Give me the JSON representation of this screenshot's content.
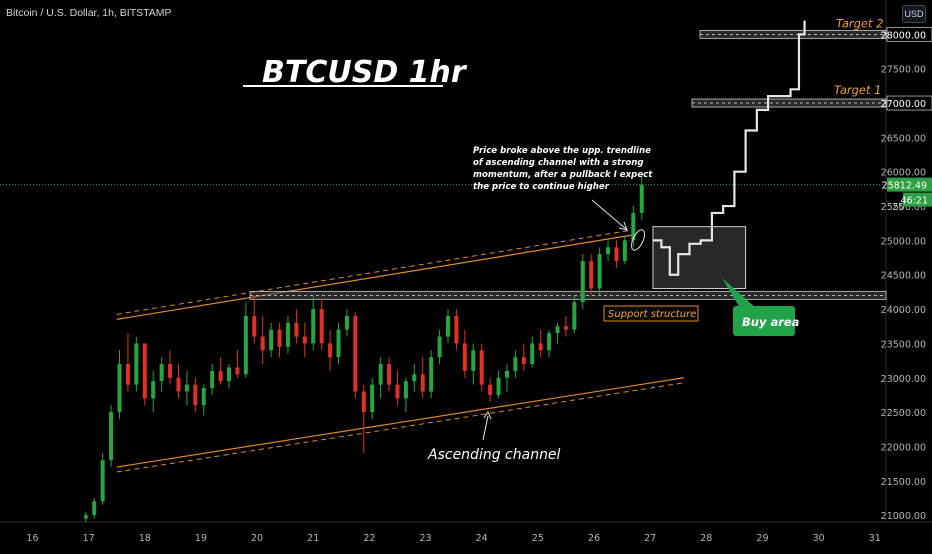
{
  "header": {
    "symbol": "Bitcoin / U.S. Dollar, 1h, BITSTAMP",
    "currency": "USD"
  },
  "colors": {
    "background": "#000000",
    "up": "#26a641",
    "down": "#e0302a",
    "channel": "#e08a2c",
    "price_line": "#2ea043",
    "box_fill": "#3a3a3a",
    "callout_green": "#21a34a",
    "text": "#ffffff",
    "target_text": "#f0a030"
  },
  "annotations": {
    "title": "BTCUSD 1hr",
    "target1": "Target 2",
    "target2": "Target 1",
    "support": "Support structure",
    "buy": "Buy area",
    "channel": "Ascending channel",
    "note": [
      "Price broke above the upp. trendline",
      "of ascending channel with a strong",
      "momentum, after a pullback I expect",
      "the price to continue higher"
    ]
  },
  "chart_data": {
    "type": "candlestick",
    "title": "BTCUSD 1hr",
    "x_ticks": [
      "16",
      "17",
      "18",
      "19",
      "20",
      "21",
      "22",
      "23",
      "24",
      "25",
      "26",
      "27",
      "28",
      "29",
      "30",
      "31"
    ],
    "y_ticks": [
      21000,
      21500,
      22000,
      22500,
      23000,
      23500,
      24000,
      24500,
      25000,
      25500,
      26000,
      26500,
      27000,
      27500,
      28000
    ],
    "ylim": [
      20900,
      28500
    ],
    "xlim": [
      15.6,
      31.2
    ],
    "current_price": "25812.49",
    "countdown": "46:21",
    "partial_tick": "25",
    "levels": [
      {
        "name": "Target 2",
        "value": 28000
      },
      {
        "name": "Target 1",
        "value": 27000
      },
      {
        "name": "Support structure",
        "value": 24200
      }
    ],
    "channel": {
      "upper": [
        [
          17.5,
          23850
        ],
        [
          26.7,
          25080
        ]
      ],
      "lower": [
        [
          17.5,
          21700
        ],
        [
          27.6,
          23000
        ]
      ]
    },
    "buy_area": {
      "x": [
        27.05,
        28.7
      ],
      "y": [
        24300,
        25200
      ]
    },
    "projection": [
      [
        27.05,
        25000
      ],
      [
        27.2,
        24900
      ],
      [
        27.35,
        24500
      ],
      [
        27.5,
        24800
      ],
      [
        27.7,
        24950
      ],
      [
        27.9,
        25000
      ],
      [
        28.1,
        25400
      ],
      [
        28.3,
        25500
      ],
      [
        28.5,
        26000
      ],
      [
        28.7,
        26600
      ],
      [
        28.9,
        26900
      ],
      [
        29.1,
        27100
      ],
      [
        29.3,
        27100
      ],
      [
        29.5,
        27200
      ],
      [
        29.65,
        28000
      ],
      [
        29.75,
        28200
      ]
    ],
    "candles": [
      {
        "x": 16.95,
        "o": 20950,
        "h": 21050,
        "l": 20900,
        "c": 21000
      },
      {
        "x": 17.1,
        "o": 21000,
        "h": 21250,
        "l": 20950,
        "c": 21200
      },
      {
        "x": 17.25,
        "o": 21200,
        "h": 21900,
        "l": 21150,
        "c": 21800
      },
      {
        "x": 17.4,
        "o": 21800,
        "h": 22600,
        "l": 21700,
        "c": 22500
      },
      {
        "x": 17.55,
        "o": 22500,
        "h": 23400,
        "l": 22400,
        "c": 23200
      },
      {
        "x": 17.7,
        "o": 23200,
        "h": 23650,
        "l": 22800,
        "c": 22900
      },
      {
        "x": 17.85,
        "o": 22900,
        "h": 23600,
        "l": 22800,
        "c": 23500
      },
      {
        "x": 18.0,
        "o": 23500,
        "h": 23500,
        "l": 22600,
        "c": 22700
      },
      {
        "x": 18.15,
        "o": 22700,
        "h": 23100,
        "l": 22500,
        "c": 22950
      },
      {
        "x": 18.3,
        "o": 22950,
        "h": 23300,
        "l": 22800,
        "c": 23200
      },
      {
        "x": 18.45,
        "o": 23200,
        "h": 23400,
        "l": 22900,
        "c": 23000
      },
      {
        "x": 18.6,
        "o": 23000,
        "h": 23200,
        "l": 22700,
        "c": 22800
      },
      {
        "x": 18.75,
        "o": 22800,
        "h": 23100,
        "l": 22600,
        "c": 22900
      },
      {
        "x": 18.9,
        "o": 22900,
        "h": 23000,
        "l": 22500,
        "c": 22600
      },
      {
        "x": 19.05,
        "o": 22600,
        "h": 22900,
        "l": 22450,
        "c": 22850
      },
      {
        "x": 19.2,
        "o": 22850,
        "h": 23200,
        "l": 22750,
        "c": 23100
      },
      {
        "x": 19.35,
        "o": 23100,
        "h": 23300,
        "l": 22900,
        "c": 22950
      },
      {
        "x": 19.5,
        "o": 22950,
        "h": 23200,
        "l": 22850,
        "c": 23150
      },
      {
        "x": 19.65,
        "o": 23150,
        "h": 23400,
        "l": 23000,
        "c": 23050
      },
      {
        "x": 19.8,
        "o": 23050,
        "h": 24100,
        "l": 23000,
        "c": 23900
      },
      {
        "x": 19.95,
        "o": 23900,
        "h": 24200,
        "l": 23500,
        "c": 23600
      },
      {
        "x": 20.1,
        "o": 23600,
        "h": 23900,
        "l": 23200,
        "c": 23400
      },
      {
        "x": 20.25,
        "o": 23400,
        "h": 23800,
        "l": 23300,
        "c": 23700
      },
      {
        "x": 20.4,
        "o": 23700,
        "h": 23800,
        "l": 23300,
        "c": 23450
      },
      {
        "x": 20.55,
        "o": 23450,
        "h": 23900,
        "l": 23350,
        "c": 23800
      },
      {
        "x": 20.7,
        "o": 23800,
        "h": 24000,
        "l": 23500,
        "c": 23600
      },
      {
        "x": 20.85,
        "o": 23600,
        "h": 23800,
        "l": 23300,
        "c": 23500
      },
      {
        "x": 21.0,
        "o": 23500,
        "h": 24200,
        "l": 23400,
        "c": 24000
      },
      {
        "x": 21.15,
        "o": 24000,
        "h": 24150,
        "l": 23400,
        "c": 23500
      },
      {
        "x": 21.3,
        "o": 23500,
        "h": 23700,
        "l": 23100,
        "c": 23300
      },
      {
        "x": 21.45,
        "o": 23300,
        "h": 23800,
        "l": 23200,
        "c": 23700
      },
      {
        "x": 21.6,
        "o": 23700,
        "h": 24000,
        "l": 23600,
        "c": 23900
      },
      {
        "x": 21.75,
        "o": 23900,
        "h": 23950,
        "l": 22700,
        "c": 22800
      },
      {
        "x": 21.9,
        "o": 22800,
        "h": 22900,
        "l": 21900,
        "c": 22500
      },
      {
        "x": 22.05,
        "o": 22500,
        "h": 23000,
        "l": 22400,
        "c": 22900
      },
      {
        "x": 22.2,
        "o": 22900,
        "h": 23300,
        "l": 22700,
        "c": 23200
      },
      {
        "x": 22.35,
        "o": 23200,
        "h": 23300,
        "l": 22800,
        "c": 22900
      },
      {
        "x": 22.5,
        "o": 22900,
        "h": 23100,
        "l": 22600,
        "c": 22700
      },
      {
        "x": 22.65,
        "o": 22700,
        "h": 23000,
        "l": 22500,
        "c": 22950
      },
      {
        "x": 22.8,
        "o": 22950,
        "h": 23200,
        "l": 22800,
        "c": 23050
      },
      {
        "x": 22.95,
        "o": 23050,
        "h": 23300,
        "l": 22700,
        "c": 22800
      },
      {
        "x": 23.1,
        "o": 22800,
        "h": 23400,
        "l": 22700,
        "c": 23300
      },
      {
        "x": 23.25,
        "o": 23300,
        "h": 23700,
        "l": 23200,
        "c": 23600
      },
      {
        "x": 23.4,
        "o": 23600,
        "h": 24000,
        "l": 23500,
        "c": 23900
      },
      {
        "x": 23.55,
        "o": 23900,
        "h": 24000,
        "l": 23400,
        "c": 23500
      },
      {
        "x": 23.7,
        "o": 23500,
        "h": 23700,
        "l": 23000,
        "c": 23100
      },
      {
        "x": 23.85,
        "o": 23100,
        "h": 23500,
        "l": 22900,
        "c": 23400
      },
      {
        "x": 24.0,
        "o": 23400,
        "h": 23500,
        "l": 22800,
        "c": 22900
      },
      {
        "x": 24.15,
        "o": 22900,
        "h": 23000,
        "l": 22650,
        "c": 22750
      },
      {
        "x": 24.3,
        "o": 22750,
        "h": 23100,
        "l": 22700,
        "c": 23000
      },
      {
        "x": 24.45,
        "o": 23000,
        "h": 23200,
        "l": 22800,
        "c": 23100
      },
      {
        "x": 24.6,
        "o": 23100,
        "h": 23400,
        "l": 23000,
        "c": 23300
      },
      {
        "x": 24.75,
        "o": 23300,
        "h": 23500,
        "l": 23100,
        "c": 23200
      },
      {
        "x": 24.9,
        "o": 23200,
        "h": 23600,
        "l": 23150,
        "c": 23500
      },
      {
        "x": 25.05,
        "o": 23500,
        "h": 23700,
        "l": 23300,
        "c": 23400
      },
      {
        "x": 25.2,
        "o": 23400,
        "h": 23700,
        "l": 23300,
        "c": 23650
      },
      {
        "x": 25.35,
        "o": 23650,
        "h": 23800,
        "l": 23500,
        "c": 23750
      },
      {
        "x": 25.5,
        "o": 23750,
        "h": 23900,
        "l": 23600,
        "c": 23700
      },
      {
        "x": 25.65,
        "o": 23700,
        "h": 24200,
        "l": 23650,
        "c": 24100
      },
      {
        "x": 25.8,
        "o": 24100,
        "h": 24800,
        "l": 24000,
        "c": 24700
      },
      {
        "x": 25.95,
        "o": 24700,
        "h": 24800,
        "l": 24200,
        "c": 24300
      },
      {
        "x": 26.1,
        "o": 24300,
        "h": 24900,
        "l": 24200,
        "c": 24800
      },
      {
        "x": 26.25,
        "o": 24800,
        "h": 25000,
        "l": 24700,
        "c": 24900
      },
      {
        "x": 26.4,
        "o": 24900,
        "h": 25000,
        "l": 24600,
        "c": 24700
      },
      {
        "x": 26.55,
        "o": 24700,
        "h": 25050,
        "l": 24650,
        "c": 25000
      },
      {
        "x": 26.7,
        "o": 25000,
        "h": 25500,
        "l": 24900,
        "c": 25400
      },
      {
        "x": 26.85,
        "o": 25400,
        "h": 25950,
        "l": 25300,
        "c": 25812
      }
    ]
  }
}
